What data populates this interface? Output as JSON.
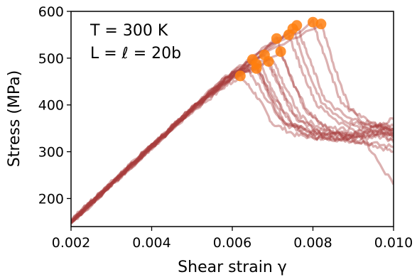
{
  "chart_data": {
    "type": "line",
    "xlabel": "Shear strain γ",
    "ylabel": "Stress (MPa)",
    "xlim": [
      0.002,
      0.01
    ],
    "ylim": [
      140,
      600
    ],
    "xticks": [
      0.002,
      0.004,
      0.006,
      0.008,
      0.01
    ],
    "xtick_labels": [
      "0.002",
      "0.004",
      "0.006",
      "0.008",
      "0.010"
    ],
    "yticks": [
      200,
      300,
      400,
      500,
      600
    ],
    "ytick_labels": [
      "200",
      "300",
      "400",
      "500",
      "600"
    ],
    "annotations": [
      "T = 300 K",
      "L = ℓ = 20b"
    ],
    "grid": false,
    "series_color": "#a83c3c",
    "marker_color": "#ff7f0e",
    "series": [
      {
        "values": [
          [
            0.002,
            148
          ],
          [
            0.003,
            230
          ],
          [
            0.004,
            310
          ],
          [
            0.005,
            385
          ],
          [
            0.0058,
            438
          ],
          [
            0.0062,
            462
          ],
          [
            0.0066,
            420
          ],
          [
            0.007,
            360
          ],
          [
            0.0076,
            335
          ],
          [
            0.0082,
            330
          ],
          [
            0.0088,
            325
          ],
          [
            0.0094,
            318
          ],
          [
            0.01,
            300
          ]
        ]
      },
      {
        "values": [
          [
            0.002,
            150
          ],
          [
            0.003,
            232
          ],
          [
            0.004,
            312
          ],
          [
            0.005,
            390
          ],
          [
            0.006,
            455
          ],
          [
            0.0065,
            497
          ],
          [
            0.0068,
            440
          ],
          [
            0.0072,
            370
          ],
          [
            0.0078,
            340
          ],
          [
            0.0084,
            338
          ],
          [
            0.009,
            330
          ],
          [
            0.0096,
            345
          ],
          [
            0.01,
            335
          ]
        ]
      },
      {
        "values": [
          [
            0.002,
            146
          ],
          [
            0.003,
            228
          ],
          [
            0.004,
            308
          ],
          [
            0.005,
            388
          ],
          [
            0.006,
            458
          ],
          [
            0.0066,
            487
          ],
          [
            0.0069,
            430
          ],
          [
            0.0073,
            365
          ],
          [
            0.0079,
            345
          ],
          [
            0.0085,
            335
          ],
          [
            0.0091,
            325
          ],
          [
            0.0097,
            340
          ],
          [
            0.01,
            320
          ]
        ]
      },
      {
        "values": [
          [
            0.002,
            152
          ],
          [
            0.003,
            234
          ],
          [
            0.004,
            314
          ],
          [
            0.005,
            392
          ],
          [
            0.006,
            462
          ],
          [
            0.0066,
            478
          ],
          [
            0.007,
            420
          ],
          [
            0.0075,
            360
          ],
          [
            0.0081,
            330
          ],
          [
            0.0087,
            328
          ],
          [
            0.0093,
            320
          ],
          [
            0.01,
            310
          ]
        ]
      },
      {
        "values": [
          [
            0.002,
            149
          ],
          [
            0.003,
            231
          ],
          [
            0.004,
            311
          ],
          [
            0.005,
            390
          ],
          [
            0.006,
            462
          ],
          [
            0.0068,
            507
          ],
          [
            0.0071,
            450
          ],
          [
            0.0075,
            380
          ],
          [
            0.0081,
            345
          ],
          [
            0.0087,
            340
          ],
          [
            0.0093,
            335
          ],
          [
            0.01,
            340
          ]
        ]
      },
      {
        "values": [
          [
            0.002,
            147
          ],
          [
            0.003,
            229
          ],
          [
            0.004,
            309
          ],
          [
            0.005,
            388
          ],
          [
            0.006,
            460
          ],
          [
            0.0069,
            493
          ],
          [
            0.0072,
            440
          ],
          [
            0.0076,
            370
          ],
          [
            0.0082,
            340
          ],
          [
            0.0088,
            335
          ],
          [
            0.0094,
            345
          ],
          [
            0.01,
            330
          ]
        ]
      },
      {
        "values": [
          [
            0.002,
            151
          ],
          [
            0.003,
            233
          ],
          [
            0.004,
            313
          ],
          [
            0.005,
            393
          ],
          [
            0.006,
            468
          ],
          [
            0.0071,
            542
          ],
          [
            0.0074,
            470
          ],
          [
            0.0078,
            390
          ],
          [
            0.0084,
            350
          ],
          [
            0.009,
            345
          ],
          [
            0.0096,
            355
          ],
          [
            0.01,
            340
          ]
        ]
      },
      {
        "values": [
          [
            0.002,
            150
          ],
          [
            0.003,
            232
          ],
          [
            0.004,
            312
          ],
          [
            0.005,
            392
          ],
          [
            0.006,
            466
          ],
          [
            0.0072,
            514
          ],
          [
            0.0075,
            450
          ],
          [
            0.0079,
            380
          ],
          [
            0.0085,
            340
          ],
          [
            0.0091,
            330
          ],
          [
            0.0097,
            345
          ],
          [
            0.01,
            335
          ]
        ]
      },
      {
        "values": [
          [
            0.002,
            148
          ],
          [
            0.003,
            230
          ],
          [
            0.004,
            310
          ],
          [
            0.005,
            390
          ],
          [
            0.006,
            464
          ],
          [
            0.0074,
            550
          ],
          [
            0.0077,
            480
          ],
          [
            0.0081,
            400
          ],
          [
            0.0087,
            360
          ],
          [
            0.0093,
            350
          ],
          [
            0.01,
            345
          ]
        ]
      },
      {
        "values": [
          [
            0.002,
            153
          ],
          [
            0.003,
            235
          ],
          [
            0.004,
            315
          ],
          [
            0.005,
            395
          ],
          [
            0.006,
            470
          ],
          [
            0.0075,
            563
          ],
          [
            0.0078,
            490
          ],
          [
            0.0082,
            405
          ],
          [
            0.0088,
            365
          ],
          [
            0.0094,
            355
          ],
          [
            0.01,
            350
          ]
        ]
      },
      {
        "values": [
          [
            0.002,
            149
          ],
          [
            0.003,
            231
          ],
          [
            0.004,
            311
          ],
          [
            0.005,
            391
          ],
          [
            0.006,
            468
          ],
          [
            0.0076,
            570
          ],
          [
            0.0079,
            500
          ],
          [
            0.0083,
            410
          ],
          [
            0.0089,
            370
          ],
          [
            0.0095,
            360
          ],
          [
            0.01,
            355
          ]
        ]
      },
      {
        "values": [
          [
            0.002,
            150
          ],
          [
            0.003,
            232
          ],
          [
            0.004,
            312
          ],
          [
            0.005,
            392
          ],
          [
            0.006,
            470
          ],
          [
            0.008,
            577
          ],
          [
            0.0083,
            500
          ],
          [
            0.0087,
            405
          ],
          [
            0.0093,
            360
          ],
          [
            0.01,
            350
          ]
        ]
      },
      {
        "values": [
          [
            0.002,
            152
          ],
          [
            0.003,
            234
          ],
          [
            0.004,
            314
          ],
          [
            0.005,
            394
          ],
          [
            0.006,
            472
          ],
          [
            0.0082,
            573
          ],
          [
            0.0085,
            490
          ],
          [
            0.0089,
            395
          ],
          [
            0.0095,
            360
          ],
          [
            0.01,
            345
          ]
        ]
      },
      {
        "values": [
          [
            0.002,
            147
          ],
          [
            0.003,
            229
          ],
          [
            0.004,
            309
          ],
          [
            0.005,
            389
          ],
          [
            0.006,
            458
          ],
          [
            0.0064,
            476
          ],
          [
            0.0068,
            420
          ],
          [
            0.0073,
            360
          ],
          [
            0.008,
            330
          ],
          [
            0.0086,
            328
          ],
          [
            0.0092,
            335
          ],
          [
            0.01,
            230
          ]
        ]
      },
      {
        "values": [
          [
            0.002,
            151
          ],
          [
            0.003,
            233
          ],
          [
            0.004,
            313
          ],
          [
            0.005,
            393
          ],
          [
            0.006,
            466
          ],
          [
            0.0067,
            484
          ],
          [
            0.007,
            430
          ],
          [
            0.0074,
            365
          ],
          [
            0.008,
            340
          ],
          [
            0.0086,
            325
          ],
          [
            0.0092,
            338
          ],
          [
            0.01,
            325
          ]
        ]
      },
      {
        "values": [
          [
            0.002,
            149
          ],
          [
            0.003,
            231
          ],
          [
            0.004,
            311
          ],
          [
            0.005,
            391
          ],
          [
            0.006,
            464
          ],
          [
            0.007,
            497
          ],
          [
            0.0073,
            440
          ],
          [
            0.0077,
            375
          ],
          [
            0.0083,
            345
          ],
          [
            0.0089,
            335
          ],
          [
            0.0095,
            350
          ],
          [
            0.01,
            370
          ]
        ]
      }
    ],
    "peaks": [
      [
        0.0062,
        462
      ],
      [
        0.0065,
        497
      ],
      [
        0.0066,
        487
      ],
      [
        0.0066,
        478
      ],
      [
        0.0068,
        507
      ],
      [
        0.0069,
        493
      ],
      [
        0.0071,
        542
      ],
      [
        0.0072,
        514
      ],
      [
        0.0074,
        550
      ],
      [
        0.0075,
        563
      ],
      [
        0.0076,
        570
      ],
      [
        0.008,
        577
      ],
      [
        0.0082,
        573
      ]
    ]
  }
}
